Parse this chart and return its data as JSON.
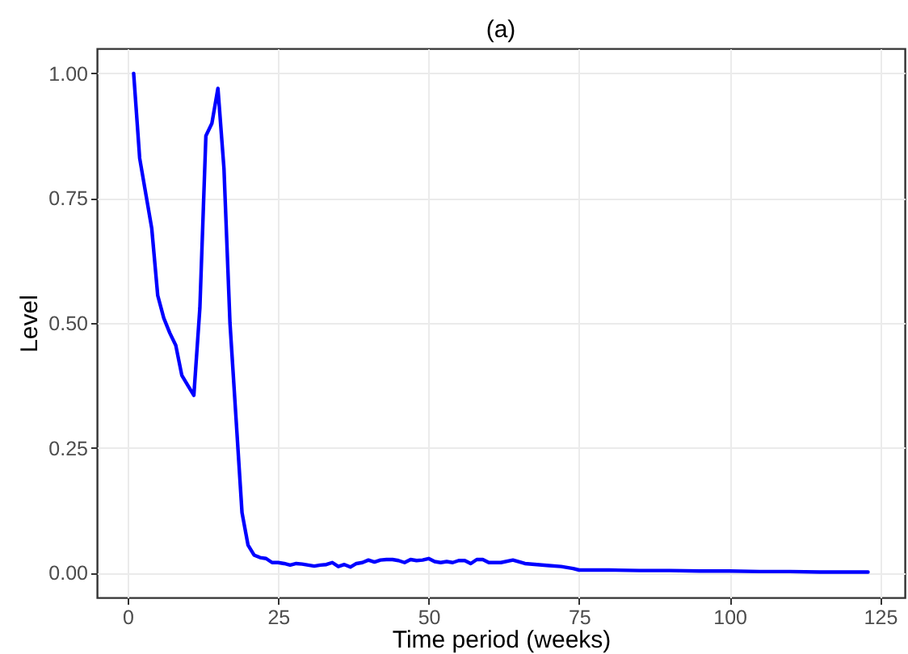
{
  "chart_data": {
    "type": "line",
    "title": "(a)",
    "xlabel": "Time period (weeks)",
    "ylabel": "Level",
    "x": [
      1,
      2,
      3,
      4,
      5,
      6,
      7,
      8,
      9,
      10,
      11,
      12,
      13,
      14,
      15,
      16,
      17,
      18,
      19,
      20,
      21,
      22,
      23,
      24,
      25,
      26,
      27,
      28,
      29,
      30,
      31,
      32,
      33,
      34,
      35,
      36,
      37,
      38,
      39,
      40,
      41,
      42,
      43,
      44,
      45,
      46,
      47,
      48,
      49,
      50,
      51,
      52,
      53,
      54,
      55,
      56,
      57,
      58,
      59,
      60,
      62,
      64,
      66,
      68,
      70,
      72,
      74,
      75,
      80,
      85,
      90,
      95,
      100,
      105,
      110,
      115,
      120,
      123
    ],
    "series": [
      {
        "color": "#0000ff",
        "values": [
          1.0,
          0.83,
          0.76,
          0.69,
          0.555,
          0.51,
          0.48,
          0.455,
          0.395,
          0.375,
          0.355,
          0.53,
          0.875,
          0.9,
          0.97,
          0.81,
          0.5,
          0.31,
          0.12,
          0.055,
          0.035,
          0.03,
          0.028,
          0.02,
          0.02,
          0.018,
          0.015,
          0.018,
          0.017,
          0.015,
          0.013,
          0.015,
          0.016,
          0.02,
          0.012,
          0.016,
          0.011,
          0.018,
          0.02,
          0.025,
          0.021,
          0.025,
          0.026,
          0.026,
          0.024,
          0.02,
          0.026,
          0.024,
          0.025,
          0.028,
          0.022,
          0.02,
          0.022,
          0.02,
          0.024,
          0.024,
          0.018,
          0.026,
          0.026,
          0.02,
          0.02,
          0.025,
          0.018,
          0.016,
          0.014,
          0.012,
          0.008,
          0.005,
          0.005,
          0.004,
          0.004,
          0.003,
          0.003,
          0.002,
          0.002,
          0.001,
          0.001,
          0.001
        ]
      }
    ],
    "xlim": [
      -5.1,
      129.1
    ],
    "xticks": [
      0,
      25,
      50,
      75,
      100,
      125
    ],
    "ylim": [
      -0.05,
      1.05
    ],
    "yticks": [
      {
        "value": 0,
        "label": "0.00"
      },
      {
        "value": 0.25,
        "label": "0.25"
      },
      {
        "value": 0.5,
        "label": "0.50"
      },
      {
        "value": 0.75,
        "label": "0.75"
      },
      {
        "value": 1,
        "label": "1.00"
      }
    ],
    "grid": true,
    "legend": false,
    "line_style": "solid",
    "marker": "none"
  }
}
